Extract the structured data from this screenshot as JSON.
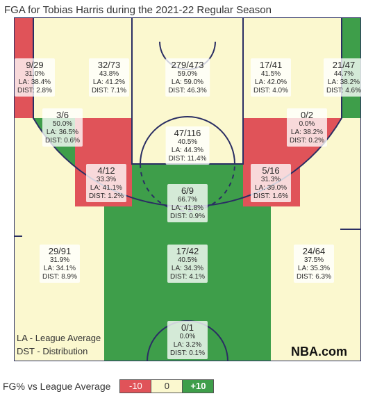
{
  "title": "FGA for Tobias Harris during the 2021-22 Regular Season",
  "brand": "NBA.com",
  "legend_notes": [
    "LA - League Average",
    "DST - Distribution"
  ],
  "scale": {
    "title": "FG% vs League Average",
    "low_label": "-10",
    "mid_label": "0",
    "high_label": "+10"
  },
  "colors": {
    "below": "#e05359",
    "neutral": "#fbf8cf",
    "above": "#3e9e4a",
    "court_lines": "#2a2e63",
    "wood": "#f6f3ec"
  },
  "chart_data": {
    "type": "heatmap",
    "title": "FGA for Tobias Harris during the 2021-22 Regular Season",
    "zones": [
      {
        "name": "Left Corner 3",
        "fga": "9/29",
        "fg_pct": "31.0%",
        "la": "LA: 38.4%",
        "dist": "DIST: 2.8%",
        "rating": "below"
      },
      {
        "name": "Left Baseline Mid-Range",
        "fga": "32/73",
        "fg_pct": "43.8%",
        "la": "LA: 41.2%",
        "dist": "DIST: 7.1%",
        "rating": "neutral"
      },
      {
        "name": "Restricted Area",
        "fga": "279/473",
        "fg_pct": "59.0%",
        "la": "LA: 59.0%",
        "dist": "DIST: 46.3%",
        "rating": "neutral"
      },
      {
        "name": "Right Baseline Mid-Range",
        "fga": "17/41",
        "fg_pct": "41.5%",
        "la": "LA: 42.0%",
        "dist": "DIST: 4.0%",
        "rating": "neutral"
      },
      {
        "name": "Right Corner 3",
        "fga": "21/47",
        "fg_pct": "44.7%",
        "la": "LA: 38.2%",
        "dist": "DIST: 4.6%",
        "rating": "above"
      },
      {
        "name": "Left Wing Long Mid-Range",
        "fga": "3/6",
        "fg_pct": "50.0%",
        "la": "LA: 36.5%",
        "dist": "DIST: 0.6%",
        "rating": "above"
      },
      {
        "name": "Paint (Non-RA)",
        "fga": "47/116",
        "fg_pct": "40.5%",
        "la": "LA: 44.3%",
        "dist": "DIST: 11.4%",
        "rating": "neutral"
      },
      {
        "name": "Right Wing Long Mid-Range",
        "fga": "0/2",
        "fg_pct": "0.0%",
        "la": "LA: 38.2%",
        "dist": "DIST: 0.2%",
        "rating": "below"
      },
      {
        "name": "Left Elbow Mid-Range",
        "fga": "4/12",
        "fg_pct": "33.3%",
        "la": "LA: 41.1%",
        "dist": "DIST: 1.2%",
        "rating": "below"
      },
      {
        "name": "Right Elbow Mid-Range",
        "fga": "5/16",
        "fg_pct": "31.3%",
        "la": "LA: 39.0%",
        "dist": "DIST: 1.6%",
        "rating": "below"
      },
      {
        "name": "Top of Key Mid-Range",
        "fga": "6/9",
        "fg_pct": "66.7%",
        "la": "LA: 41.8%",
        "dist": "DIST: 0.9%",
        "rating": "above"
      },
      {
        "name": "Left Wing 3",
        "fga": "29/91",
        "fg_pct": "31.9%",
        "la": "LA: 34.1%",
        "dist": "DIST: 8.9%",
        "rating": "neutral"
      },
      {
        "name": "Top of Key 3",
        "fga": "17/42",
        "fg_pct": "40.5%",
        "la": "LA: 34.3%",
        "dist": "DIST: 4.1%",
        "rating": "above"
      },
      {
        "name": "Right Wing 3",
        "fga": "24/64",
        "fg_pct": "37.5%",
        "la": "LA: 35.3%",
        "dist": "DIST: 6.3%",
        "rating": "neutral"
      },
      {
        "name": "Backcourt",
        "fga": "0/1",
        "fg_pct": "0.0%",
        "la": "LA: 3.2%",
        "dist": "DIST: 0.1%",
        "rating": "neutral"
      }
    ]
  }
}
